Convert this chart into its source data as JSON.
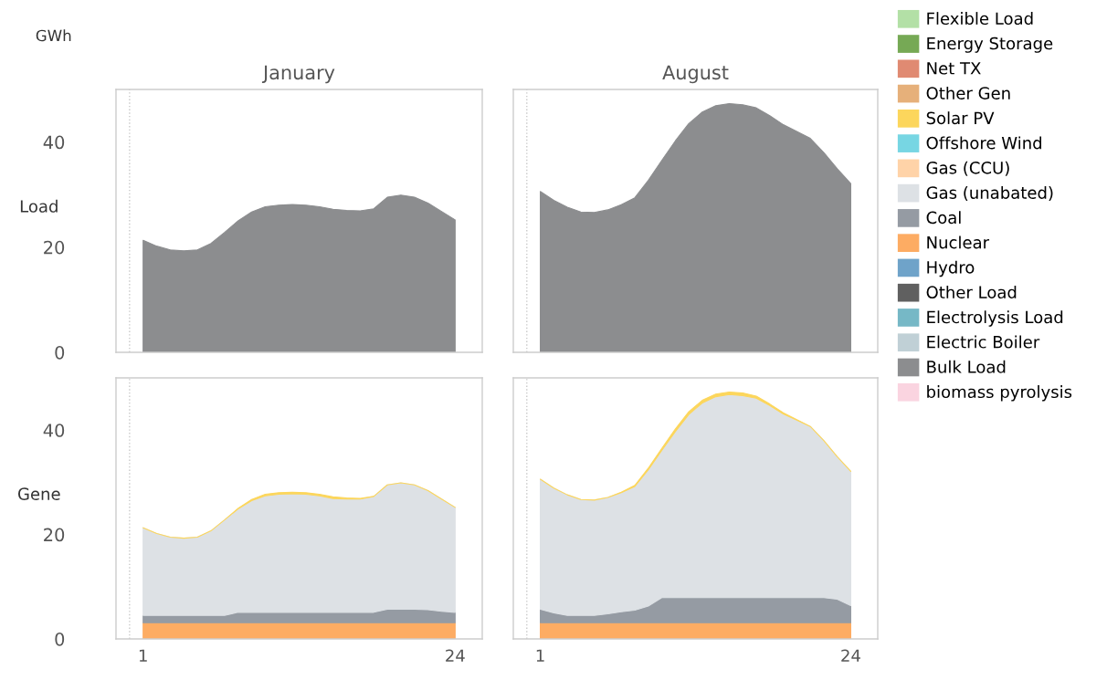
{
  "chart_data": [
    {
      "type": "area",
      "stacked": true,
      "legend": "right",
      "title": "January",
      "ylabel": "Load",
      "annotations": [
        "GWh"
      ],
      "x": [
        1,
        2,
        3,
        4,
        5,
        6,
        7,
        8,
        9,
        10,
        11,
        12,
        13,
        14,
        15,
        16,
        17,
        18,
        19,
        20,
        21,
        22,
        23,
        24
      ],
      "xlim": [
        -1,
        26
      ],
      "xticks": [
        1,
        24
      ],
      "ylim": [
        0,
        50
      ],
      "yticks": [
        0,
        20,
        40
      ],
      "tick_labels": "y",
      "ref_lines": [
        {
          "axis": "x",
          "value": 0,
          "label": null,
          "color": "#c8c8c8",
          "line_style": "dotted"
        }
      ],
      "series": [
        {
          "name": "Bulk Load",
          "color": "#8c8d8f",
          "values": [
            21.3,
            20.2,
            19.5,
            19.3,
            19.5,
            20.7,
            22.8,
            25.0,
            26.7,
            27.7,
            28.0,
            28.1,
            28.0,
            27.7,
            27.2,
            27.0,
            26.9,
            27.3,
            29.5,
            29.9,
            29.5,
            28.4,
            26.8,
            25.2
          ]
        }
      ]
    },
    {
      "type": "area",
      "stacked": true,
      "legend": "right",
      "title": "August",
      "x": [
        1,
        2,
        3,
        4,
        5,
        6,
        7,
        8,
        9,
        10,
        11,
        12,
        13,
        14,
        15,
        16,
        17,
        18,
        19,
        20,
        21,
        22,
        23,
        24
      ],
      "xlim": [
        -1,
        26
      ],
      "xticks": [
        1,
        24
      ],
      "ylim": [
        0,
        50
      ],
      "yticks": [
        0,
        20,
        40
      ],
      "tick_labels": false,
      "ref_lines": [
        {
          "axis": "x",
          "value": 0,
          "label": null,
          "color": "#c8c8c8",
          "line_style": "dotted"
        }
      ],
      "series": [
        {
          "name": "Bulk Load",
          "color": "#8c8d8f",
          "values": [
            30.6,
            28.9,
            27.6,
            26.7,
            26.6,
            27.1,
            28.1,
            29.4,
            32.7,
            36.5,
            40.2,
            43.5,
            45.7,
            46.9,
            47.3,
            47.1,
            46.5,
            45.0,
            43.3,
            42.0,
            40.7,
            38.0,
            34.9,
            32.1
          ]
        }
      ]
    },
    {
      "type": "area",
      "stacked": true,
      "legend": "right",
      "ylabel": "Gene",
      "x": [
        1,
        2,
        3,
        4,
        5,
        6,
        7,
        8,
        9,
        10,
        11,
        12,
        13,
        14,
        15,
        16,
        17,
        18,
        19,
        20,
        21,
        22,
        23,
        24
      ],
      "xlim": [
        -1,
        26
      ],
      "xticks": [
        1,
        24
      ],
      "ylim": [
        0,
        50
      ],
      "yticks": [
        0,
        20,
        40
      ],
      "ref_lines": [
        {
          "axis": "x",
          "value": 0,
          "label": null,
          "color": "#c8c8c8",
          "line_style": "dotted"
        }
      ],
      "series": [
        {
          "name": "Nuclear",
          "color": "#fdac63",
          "values": [
            3.1,
            3.1,
            3.1,
            3.1,
            3.1,
            3.1,
            3.1,
            3.1,
            3.1,
            3.1,
            3.1,
            3.1,
            3.1,
            3.1,
            3.1,
            3.1,
            3.1,
            3.1,
            3.1,
            3.1,
            3.1,
            3.1,
            3.1,
            3.1
          ]
        },
        {
          "name": "Coal",
          "color": "#959ba3",
          "values": [
            1.4,
            1.4,
            1.4,
            1.4,
            1.4,
            1.4,
            1.4,
            2.0,
            2.0,
            2.0,
            2.0,
            2.0,
            2.0,
            2.0,
            2.0,
            2.0,
            2.0,
            2.0,
            2.6,
            2.6,
            2.6,
            2.5,
            2.2,
            2.0
          ]
        },
        {
          "name": "Gas (unabated)",
          "color": "#dde1e5",
          "values": [
            16.8,
            15.7,
            15.0,
            14.8,
            15.0,
            16.2,
            18.3,
            19.8,
            21.4,
            22.3,
            22.6,
            22.7,
            22.6,
            22.3,
            21.8,
            21.7,
            21.7,
            22.2,
            23.8,
            24.2,
            23.8,
            22.8,
            21.5,
            20.1
          ]
        },
        {
          "name": "Solar PV",
          "color": "#fcd65c",
          "values": [
            0,
            0,
            0,
            0,
            0,
            0,
            0,
            0.1,
            0.2,
            0.3,
            0.3,
            0.3,
            0.3,
            0.3,
            0.3,
            0.2,
            0.1,
            0,
            0,
            0,
            0,
            0,
            0,
            0
          ]
        }
      ]
    },
    {
      "type": "area",
      "stacked": true,
      "legend": "right",
      "x": [
        1,
        2,
        3,
        4,
        5,
        6,
        7,
        8,
        9,
        10,
        11,
        12,
        13,
        14,
        15,
        16,
        17,
        18,
        19,
        20,
        21,
        22,
        23,
        24
      ],
      "xlim": [
        -1,
        26
      ],
      "xticks": [
        1,
        24
      ],
      "ylim": [
        0,
        50
      ],
      "yticks": [
        0,
        20,
        40
      ],
      "tick_labels": "x",
      "ref_lines": [
        {
          "axis": "x",
          "value": 0,
          "label": null,
          "color": "#c8c8c8",
          "line_style": "dotted"
        }
      ],
      "series": [
        {
          "name": "biomass pyrolysis",
          "color": "#fad4e0",
          "values": [
            null,
            null,
            null,
            null,
            null,
            null,
            null,
            null,
            null,
            null,
            null,
            null,
            null,
            null,
            null,
            null,
            null,
            null,
            null,
            null,
            null,
            null,
            null,
            null
          ]
        },
        {
          "name": "Bulk Load",
          "color": "#8c8d8f",
          "values": [
            null,
            null,
            null,
            null,
            null,
            null,
            null,
            null,
            null,
            null,
            null,
            null,
            null,
            null,
            null,
            null,
            null,
            null,
            null,
            null,
            null,
            null,
            null,
            null
          ]
        },
        {
          "name": "Electric Boiler",
          "color": "#c0d0d6",
          "values": [
            null,
            null,
            null,
            null,
            null,
            null,
            null,
            null,
            null,
            null,
            null,
            null,
            null,
            null,
            null,
            null,
            null,
            null,
            null,
            null,
            null,
            null,
            null,
            null
          ]
        },
        {
          "name": "Electrolysis Load",
          "color": "#76b8c6",
          "values": [
            null,
            null,
            null,
            null,
            null,
            null,
            null,
            null,
            null,
            null,
            null,
            null,
            null,
            null,
            null,
            null,
            null,
            null,
            null,
            null,
            null,
            null,
            null,
            null
          ]
        },
        {
          "name": "Other Load",
          "color": "#606060",
          "values": [
            null,
            null,
            null,
            null,
            null,
            null,
            null,
            null,
            null,
            null,
            null,
            null,
            null,
            null,
            null,
            null,
            null,
            null,
            null,
            null,
            null,
            null,
            null,
            null
          ]
        },
        {
          "name": "Hydro",
          "color": "#6fa3c9",
          "values": [
            null,
            null,
            null,
            null,
            null,
            null,
            null,
            null,
            null,
            null,
            null,
            null,
            null,
            null,
            null,
            null,
            null,
            null,
            null,
            null,
            null,
            null,
            null,
            null
          ]
        },
        {
          "name": "Nuclear",
          "color": "#fdac63",
          "values": [
            3.1,
            3.1,
            3.1,
            3.1,
            3.1,
            3.1,
            3.1,
            3.1,
            3.1,
            3.1,
            3.1,
            3.1,
            3.1,
            3.1,
            3.1,
            3.1,
            3.1,
            3.1,
            3.1,
            3.1,
            3.1,
            3.1,
            3.1,
            3.1
          ]
        },
        {
          "name": "Coal",
          "color": "#959ba3",
          "values": [
            2.6,
            1.9,
            1.4,
            1.4,
            1.4,
            1.7,
            2.1,
            2.4,
            3.2,
            4.8,
            4.8,
            4.8,
            4.8,
            4.8,
            4.8,
            4.8,
            4.8,
            4.8,
            4.8,
            4.8,
            4.8,
            4.8,
            4.5,
            3.3
          ]
        },
        {
          "name": "Gas (unabated)",
          "color": "#dde1e5",
          "values": [
            24.9,
            23.9,
            23.1,
            22.2,
            22.1,
            22.3,
            22.8,
            23.7,
            26.1,
            28.2,
            31.8,
            35.1,
            37.3,
            38.5,
            38.9,
            38.7,
            38.2,
            36.8,
            35.2,
            34.0,
            32.8,
            30.1,
            27.3,
            25.7
          ]
        },
        {
          "name": "Gas (CCU)",
          "color": "#ffd3a8",
          "values": [
            null,
            null,
            null,
            null,
            null,
            null,
            null,
            null,
            null,
            null,
            null,
            null,
            null,
            null,
            null,
            null,
            null,
            null,
            null,
            null,
            null,
            null,
            null,
            null
          ]
        },
        {
          "name": "Offshore Wind",
          "color": "#77d6e3",
          "values": [
            null,
            null,
            null,
            null,
            null,
            null,
            null,
            null,
            null,
            null,
            null,
            null,
            null,
            null,
            null,
            null,
            null,
            null,
            null,
            null,
            null,
            null,
            null,
            null
          ]
        },
        {
          "name": "Solar PV",
          "color": "#fcd65c",
          "values": [
            0,
            0,
            0,
            0,
            0,
            0,
            0.1,
            0.2,
            0.3,
            0.4,
            0.5,
            0.5,
            0.5,
            0.5,
            0.5,
            0.5,
            0.4,
            0.3,
            0.2,
            0.1,
            0,
            0,
            0,
            0
          ]
        },
        {
          "name": "Other Gen",
          "color": "#e6b07a",
          "values": [
            null,
            null,
            null,
            null,
            null,
            null,
            null,
            null,
            null,
            null,
            null,
            null,
            null,
            null,
            null,
            null,
            null,
            null,
            null,
            null,
            null,
            null,
            null,
            null
          ]
        },
        {
          "name": "Net TX",
          "color": "#e08a72",
          "values": [
            null,
            null,
            null,
            null,
            null,
            null,
            null,
            null,
            null,
            null,
            null,
            null,
            null,
            null,
            null,
            null,
            null,
            null,
            null,
            null,
            null,
            null,
            null,
            null
          ]
        },
        {
          "name": "Energy Storage",
          "color": "#76a955",
          "values": [
            null,
            null,
            null,
            null,
            null,
            null,
            null,
            null,
            null,
            null,
            null,
            null,
            null,
            null,
            null,
            null,
            null,
            null,
            null,
            null,
            null,
            null,
            null,
            null
          ]
        },
        {
          "name": "Flexible Load",
          "color": "#b3e0a6",
          "values": [
            null,
            null,
            null,
            null,
            null,
            null,
            null,
            null,
            null,
            null,
            null,
            null,
            null,
            null,
            null,
            null,
            null,
            null,
            null,
            null,
            null,
            null,
            null,
            null
          ]
        }
      ]
    }
  ]
}
